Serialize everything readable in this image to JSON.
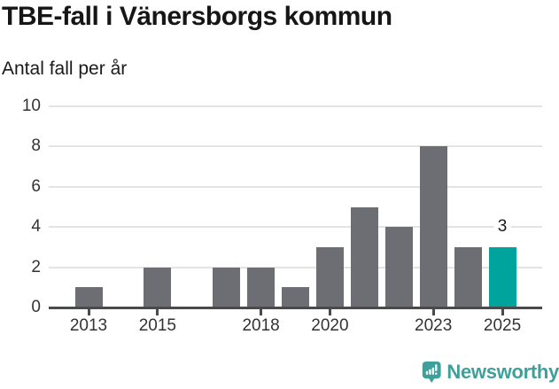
{
  "header": {
    "title": "TBE-fall i Vänersborgs kommun",
    "subtitle": "Antal fall per år"
  },
  "chart_data": {
    "type": "bar",
    "title": "TBE-fall i Vänersborgs kommun",
    "subtitle": "Antal fall per år",
    "xlabel": "",
    "ylabel": "Antal fall per år",
    "categories": [
      "2013",
      "2014",
      "2015",
      "2016",
      "2017",
      "2018",
      "2019",
      "2020",
      "2021",
      "2022",
      "2023",
      "2024",
      "2025"
    ],
    "values": [
      1,
      0,
      2,
      0,
      2,
      2,
      1,
      3,
      5,
      4,
      8,
      3,
      3
    ],
    "ylim": [
      0,
      10
    ],
    "y_ticks": [
      0,
      2,
      4,
      6,
      8,
      10
    ],
    "x_tick_labels": [
      "2013",
      "2015",
      "2018",
      "2020",
      "2023",
      "2025"
    ],
    "grid": "horizontal",
    "legend": "none",
    "bar_color": "#6d6e73",
    "highlight_color": "#00a49c",
    "highlight_category": "2025",
    "annotations": [
      {
        "category": "2025",
        "text": "3"
      }
    ]
  },
  "footer": {
    "brand": "Newsworthy",
    "brand_color": "#3fa09b",
    "logo_icon": "bar-chart-speech-bubble-icon"
  }
}
